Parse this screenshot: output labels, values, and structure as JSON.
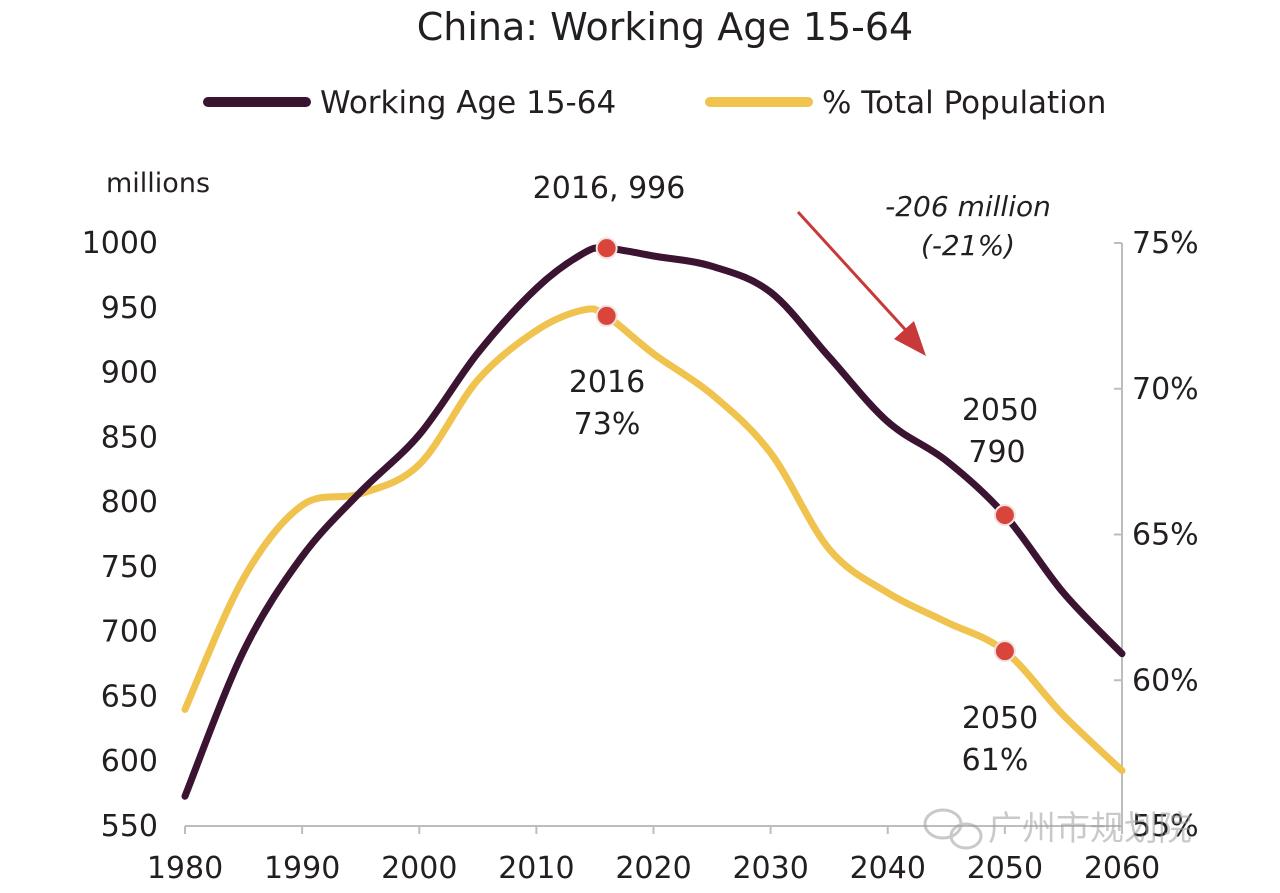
{
  "chart_data": {
    "type": "line",
    "title": "China: Working Age 15-64",
    "ylabel_left": "millions",
    "ylim_left": [
      550,
      1000
    ],
    "ylim_right": [
      0.55,
      0.75
    ],
    "xlim": [
      1980,
      2060
    ],
    "x_ticks": [
      "1980",
      "1990",
      "2000",
      "2010",
      "2020",
      "2030",
      "2040",
      "2050",
      "2060"
    ],
    "y_ticks_left": [
      "550",
      "600",
      "650",
      "700",
      "750",
      "800",
      "850",
      "900",
      "950",
      "1000"
    ],
    "y_ticks_right": [
      "55%",
      "60%",
      "65%",
      "70%",
      "75%"
    ],
    "legend_position": "top",
    "grid": false,
    "series": [
      {
        "name": "Working Age 15-64",
        "axis": "left",
        "color": "#3a1430",
        "x": [
          1980,
          1985,
          1990,
          1995,
          2000,
          2005,
          2010,
          2014,
          2016,
          2020,
          2025,
          2030,
          2035,
          2040,
          2045,
          2050,
          2055,
          2060
        ],
        "y": [
          573,
          685,
          758,
          808,
          852,
          915,
          965,
          992,
          996,
          990,
          982,
          962,
          912,
          862,
          832,
          790,
          730,
          683
        ]
      },
      {
        "name": "% Total Population",
        "axis": "right",
        "color": "#f0c24e",
        "x": [
          1980,
          1985,
          1990,
          1995,
          2000,
          2005,
          2010,
          2014,
          2016,
          2020,
          2025,
          2030,
          2035,
          2040,
          2045,
          2050,
          2055,
          2060
        ],
        "y": [
          0.59,
          0.635,
          0.66,
          0.664,
          0.674,
          0.703,
          0.72,
          0.727,
          0.725,
          0.712,
          0.698,
          0.678,
          0.645,
          0.63,
          0.62,
          0.61,
          0.588,
          0.569
        ]
      }
    ],
    "annotations": [
      {
        "id": "peak-working-age",
        "x": 2016,
        "y": 996,
        "axis": "left",
        "lines": [
          "2016, 996"
        ]
      },
      {
        "id": "peak-share",
        "x": 2016,
        "y": 0.725,
        "axis": "right",
        "lines": [
          "2016",
          "73%"
        ]
      },
      {
        "id": "working-age-2050",
        "x": 2050,
        "y": 790,
        "axis": "left",
        "lines": [
          "2050",
          "790"
        ]
      },
      {
        "id": "share-2050",
        "x": 2050,
        "y": 0.61,
        "axis": "right",
        "lines": [
          "2050",
          "61%"
        ]
      },
      {
        "id": "decline",
        "lines": [
          "-206 million",
          "(-21%)"
        ]
      }
    ],
    "colors": {
      "marker": "#d9443b",
      "arrow": "#c83a3a"
    },
    "watermark": "广州市规划院"
  }
}
